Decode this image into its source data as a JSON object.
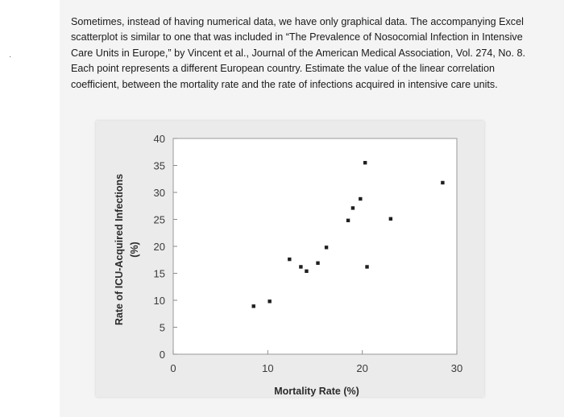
{
  "problem": {
    "text": "Sometimes, instead of having numerical data, we have only graphical data. The accompanying Excel scatterplot is similar to one that was included in “The Prevalence of Nosocomial Infection in Intensive Care Units in Europe,” by Vincent et al., Journal of the American Medical Association, Vol. 274, No. 8. Each point represents a different European country. Estimate the value of the linear correlation coefficient, between the mortality rate and the rate of infections acquired in intensive care units."
  },
  "chart_data": {
    "type": "scatter",
    "xlabel": "Mortality Rate (%)",
    "ylabel_line1": "Rate of ICU-Acquired Infections",
    "ylabel_line2": "(%)",
    "xlim": [
      0,
      30
    ],
    "ylim": [
      0,
      40
    ],
    "x_ticks": [
      "0",
      "10",
      "20",
      "30"
    ],
    "y_ticks": [
      "0",
      "5",
      "10",
      "15",
      "20",
      "25",
      "30",
      "35",
      "40"
    ],
    "grid": false,
    "points": [
      {
        "x": 8.5,
        "y": 8.9
      },
      {
        "x": 10.2,
        "y": 9.8
      },
      {
        "x": 12.3,
        "y": 17.6
      },
      {
        "x": 13.5,
        "y": 16.2
      },
      {
        "x": 14.1,
        "y": 15.4
      },
      {
        "x": 15.3,
        "y": 16.9
      },
      {
        "x": 16.2,
        "y": 19.8
      },
      {
        "x": 18.5,
        "y": 24.8
      },
      {
        "x": 19.0,
        "y": 27.1
      },
      {
        "x": 19.8,
        "y": 28.8
      },
      {
        "x": 20.3,
        "y": 35.5
      },
      {
        "x": 20.5,
        "y": 16.2
      },
      {
        "x": 23.0,
        "y": 25.1
      },
      {
        "x": 28.5,
        "y": 31.8
      }
    ]
  }
}
